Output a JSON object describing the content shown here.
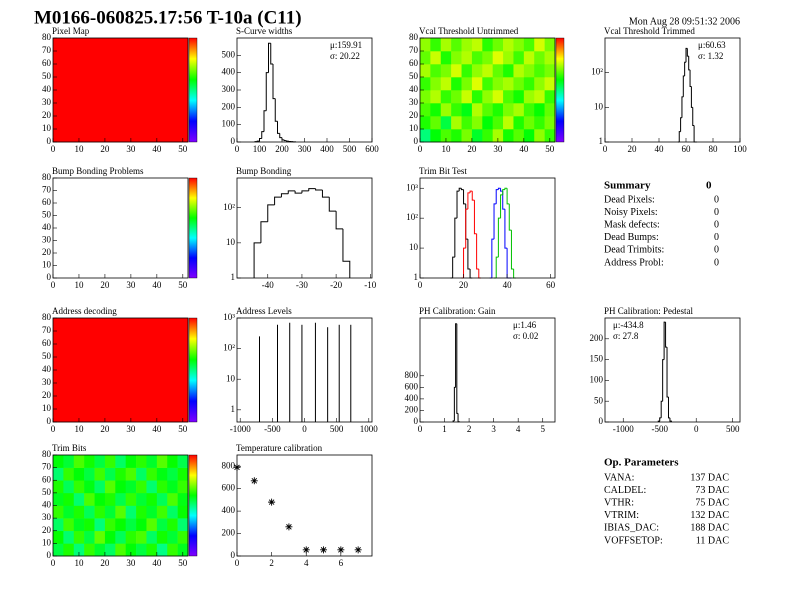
{
  "header": {
    "title": "M0166-060825.17:56 T-10a (C11)",
    "timestamp": "Mon Aug 28 09:51:32 2006"
  },
  "chart_data": [
    {
      "type": "heatmap",
      "title": "Pixel Map",
      "xlim": [
        0,
        52
      ],
      "ylim": [
        0,
        80
      ],
      "xticks": [
        0,
        10,
        20,
        30,
        40,
        50
      ],
      "yticks": [
        0,
        10,
        20,
        30,
        40,
        50,
        60,
        70,
        80
      ],
      "zlim": [
        0,
        1
      ],
      "z": [
        [
          1
        ]
      ]
    },
    {
      "type": "hist",
      "title": "S-Curve widths",
      "xlim": [
        0,
        600
      ],
      "ylim": [
        0,
        600
      ],
      "xticks": [
        0,
        100,
        200,
        300,
        400,
        500,
        600
      ],
      "yticks": [
        0,
        100,
        200,
        300,
        400,
        500
      ],
      "stats": [
        "μ:159.91",
        "σ: 20.22"
      ],
      "series": [
        {
          "color": "#000000",
          "bins": [
            80,
            90,
            100,
            110,
            120,
            130,
            140,
            150,
            160,
            170,
            180,
            190,
            200,
            210,
            220,
            230,
            240,
            250,
            260
          ],
          "values": [
            2,
            5,
            20,
            60,
            180,
            400,
            570,
            450,
            250,
            120,
            50,
            25,
            12,
            8,
            5,
            3,
            2,
            1
          ]
        }
      ]
    },
    {
      "type": "heatmap",
      "title": "Vcal Threshold Untrimmed",
      "xlim": [
        0,
        52
      ],
      "ylim": [
        0,
        80
      ],
      "xticks": [
        0,
        10,
        20,
        30,
        40,
        50
      ],
      "yticks": [
        0,
        10,
        20,
        30,
        40,
        50,
        60,
        70,
        80
      ],
      "zlim": [
        0,
        1
      ],
      "z": [
        [
          0.45,
          0.55,
          0.62,
          0.58,
          0.66,
          0.52,
          0.6,
          0.7,
          0.57,
          0.63,
          0.55,
          0.68,
          0.6
        ],
        [
          0.58,
          0.64,
          0.5,
          0.7,
          0.61,
          0.67,
          0.55,
          0.62,
          0.72,
          0.58,
          0.65,
          0.6,
          0.66
        ],
        [
          0.62,
          0.57,
          0.69,
          0.6,
          0.54,
          0.71,
          0.63,
          0.58,
          0.66,
          0.7,
          0.61,
          0.56,
          0.64
        ],
        [
          0.66,
          0.71,
          0.6,
          0.65,
          0.73,
          0.59,
          0.68,
          0.74,
          0.62,
          0.57,
          0.69,
          0.72,
          0.6
        ],
        [
          0.6,
          0.67,
          0.72,
          0.58,
          0.66,
          0.75,
          0.61,
          0.67,
          0.7,
          0.65,
          0.6,
          0.68,
          0.73
        ],
        [
          0.7,
          0.62,
          0.66,
          0.74,
          0.6,
          0.68,
          0.72,
          0.64,
          0.58,
          0.71,
          0.67,
          0.62,
          0.66
        ],
        [
          0.64,
          0.73,
          0.58,
          0.67,
          0.71,
          0.62,
          0.66,
          0.75,
          0.69,
          0.61,
          0.72,
          0.65,
          0.7
        ],
        [
          0.68,
          0.6,
          0.7,
          0.63,
          0.69,
          0.72,
          0.59,
          0.65,
          0.71,
          0.67,
          0.62,
          0.74,
          0.66
        ]
      ]
    },
    {
      "type": "hist",
      "title": "Vcal Threshold Trimmed",
      "log_y": true,
      "xlim": [
        0,
        100
      ],
      "ylim": [
        1,
        1000
      ],
      "xticks": [
        0,
        20,
        40,
        60,
        80,
        100
      ],
      "yticks": [
        1,
        10,
        {
          "value": 100,
          "label": "10²"
        }
      ],
      "stats": [
        "μ:60.63",
        "σ: 1.32"
      ],
      "series": [
        {
          "color": "#000000",
          "bins": [
            54,
            55,
            56,
            57,
            58,
            59,
            60,
            61,
            62,
            63,
            64,
            65,
            66,
            67,
            68
          ],
          "values": [
            1,
            2,
            5,
            20,
            80,
            200,
            500,
            300,
            120,
            40,
            10,
            3,
            1,
            1
          ]
        }
      ]
    },
    {
      "type": "heatmap",
      "title": "Bump Bonding Problems",
      "xlim": [
        0,
        52
      ],
      "ylim": [
        0,
        80
      ],
      "xticks": [
        0,
        10,
        20,
        30,
        40,
        50
      ],
      "yticks": [
        0,
        10,
        20,
        30,
        40,
        50,
        60,
        70,
        80
      ],
      "zlim": [
        0,
        1
      ]
    },
    {
      "type": "hist",
      "title": "Bump Bonding",
      "log_y": true,
      "xlim": [
        -49,
        -9.5
      ],
      "ylim": [
        1,
        700
      ],
      "xticks": [
        -40,
        -30,
        -20,
        -10
      ],
      "yticks": [
        1,
        10,
        {
          "value": 100,
          "label": "10²"
        }
      ],
      "series": [
        {
          "color": "#000000",
          "bins": [
            -44,
            -42,
            -40,
            -38,
            -36,
            -34,
            -32,
            -30,
            -28,
            -26,
            -24,
            -22,
            -20,
            -18,
            -16
          ],
          "values": [
            10,
            40,
            120,
            200,
            250,
            300,
            260,
            300,
            350,
            320,
            200,
            80,
            25,
            3
          ]
        }
      ]
    },
    {
      "type": "hist",
      "title": "Trim Bit Test",
      "log_y": true,
      "xlim": [
        0,
        62
      ],
      "ylim": [
        1,
        2200
      ],
      "xticks": [
        0,
        20,
        40,
        60
      ],
      "yticks": [
        1,
        10,
        {
          "value": 100,
          "label": "10²"
        },
        {
          "value": 1000,
          "label": "10³"
        }
      ],
      "series": [
        {
          "color": "#000000",
          "bins": [
            14,
            15,
            16,
            17,
            18,
            19,
            20,
            21,
            22,
            23,
            24
          ],
          "values": [
            1,
            5,
            100,
            800,
            1000,
            900,
            300,
            20,
            2,
            1
          ]
        },
        {
          "color": "#ff0000",
          "bins": [
            19,
            20,
            21,
            22,
            23,
            24,
            25,
            26,
            27,
            28
          ],
          "values": [
            1,
            10,
            200,
            700,
            800,
            400,
            30,
            2,
            1
          ]
        },
        {
          "color": "#0000ff",
          "bins": [
            32,
            33,
            34,
            35,
            36,
            37,
            38,
            39,
            40,
            41,
            42
          ],
          "values": [
            1,
            20,
            300,
            900,
            1000,
            800,
            200,
            10,
            1,
            1
          ]
        },
        {
          "color": "#00c000",
          "bins": [
            34,
            35,
            36,
            37,
            38,
            39,
            40,
            41,
            42,
            43,
            44
          ],
          "values": [
            1,
            5,
            100,
            600,
            900,
            1000,
            300,
            40,
            2,
            1
          ]
        }
      ]
    },
    {
      "type": "heatmap",
      "title": "Address decoding",
      "xlim": [
        0,
        52
      ],
      "ylim": [
        0,
        80
      ],
      "xticks": [
        0,
        10,
        20,
        30,
        40,
        50
      ],
      "yticks": [
        0,
        10,
        20,
        30,
        40,
        50,
        60,
        70,
        80
      ],
      "zlim": [
        0,
        1
      ],
      "z": [
        [
          1
        ]
      ]
    },
    {
      "type": "spikes",
      "title": "Address Levels",
      "log_y": true,
      "xlim": [
        -1050,
        1050
      ],
      "ylim": [
        0.4,
        1000
      ],
      "xticks": [
        -1000,
        -500,
        0,
        500,
        1000
      ],
      "yticks": [
        1,
        10,
        {
          "value": 100,
          "label": "10²"
        },
        {
          "value": 1000,
          "label": "10³"
        }
      ],
      "color": "#000000",
      "x": [
        -700,
        -420,
        -230,
        -40,
        170,
        360,
        540,
        720
      ],
      "values": [
        250,
        600,
        700,
        600,
        700,
        500,
        600,
        600
      ]
    },
    {
      "type": "hist",
      "title": "PH Calibration: Gain",
      "xlim": [
        0,
        5.5
      ],
      "ylim": [
        0,
        1800
      ],
      "xticks": [
        0,
        1,
        2,
        3,
        4,
        5
      ],
      "yticks": [
        0,
        200,
        400,
        600,
        800
      ],
      "stats": [
        "μ:1.46",
        "σ: 0.02"
      ],
      "series": [
        {
          "color": "#000000",
          "bins": [
            1.35,
            1.4,
            1.45,
            1.5,
            1.55,
            1.6
          ],
          "values": [
            20,
            600,
            1700,
            150,
            5
          ]
        }
      ]
    },
    {
      "type": "hist",
      "title": "PH Calibration: Pedestal",
      "xlim": [
        -1250,
        600
      ],
      "ylim": [
        0,
        250
      ],
      "xticks": [
        -1000,
        -500,
        0,
        500
      ],
      "yticks": [
        0,
        50,
        100,
        150,
        200
      ],
      "stats": [
        "μ:-434.8",
        "σ: 27.8"
      ],
      "series": [
        {
          "color": "#000000",
          "bins": [
            -520,
            -500,
            -480,
            -460,
            -440,
            -420,
            -400,
            -380,
            -360,
            -340
          ],
          "values": [
            2,
            10,
            50,
            150,
            240,
            180,
            60,
            10,
            2
          ]
        }
      ]
    },
    {
      "type": "heatmap",
      "title": "Trim Bits",
      "xlim": [
        0,
        52
      ],
      "ylim": [
        0,
        80
      ],
      "xticks": [
        0,
        10,
        20,
        30,
        40,
        50
      ],
      "yticks": [
        0,
        10,
        20,
        30,
        40,
        50,
        60,
        70,
        80
      ],
      "zlim": [
        0,
        1
      ],
      "z": [
        [
          0.5,
          0.58,
          0.45,
          0.6,
          0.52,
          0.47,
          0.62,
          0.55,
          0.5,
          0.58,
          0.44,
          0.6,
          0.53
        ],
        [
          0.56,
          0.46,
          0.6,
          0.5,
          0.64,
          0.55,
          0.48,
          0.59,
          0.62,
          0.47,
          0.57,
          0.51,
          0.6
        ],
        [
          0.47,
          0.61,
          0.53,
          0.57,
          0.45,
          0.6,
          0.56,
          0.5,
          0.55,
          0.63,
          0.5,
          0.58,
          0.46
        ],
        [
          0.6,
          0.52,
          0.58,
          0.48,
          0.59,
          0.51,
          0.63,
          0.46,
          0.58,
          0.52,
          0.61,
          0.47,
          0.56
        ],
        [
          0.53,
          0.57,
          0.46,
          0.62,
          0.55,
          0.58,
          0.49,
          0.6,
          0.51,
          0.57,
          0.48,
          0.62,
          0.54
        ],
        [
          0.58,
          0.48,
          0.6,
          0.54,
          0.47,
          0.63,
          0.55,
          0.52,
          0.6,
          0.46,
          0.59,
          0.53,
          0.6
        ],
        [
          0.46,
          0.6,
          0.55,
          0.5,
          0.61,
          0.49,
          0.58,
          0.62,
          0.47,
          0.6,
          0.54,
          0.5,
          0.57
        ],
        [
          0.55,
          0.51,
          0.62,
          0.57,
          0.5,
          0.6,
          0.47,
          0.55,
          0.59,
          0.52,
          0.63,
          0.56,
          0.49
        ]
      ]
    },
    {
      "type": "scatter",
      "title": "Temperature calibration",
      "xlim": [
        0,
        7.8
      ],
      "ylim": [
        0,
        900
      ],
      "xticks": [
        0,
        2,
        4,
        6
      ],
      "yticks": [
        0,
        200,
        400,
        600,
        800
      ],
      "color": "#000000",
      "x": [
        0,
        1,
        2,
        3,
        4,
        5,
        6,
        7
      ],
      "values": [
        790,
        670,
        480,
        260,
        55,
        55,
        55,
        55
      ]
    }
  ],
  "summary": {
    "title": "Summary",
    "total": 0,
    "rows": [
      {
        "label": "Dead Pixels:",
        "value": 0
      },
      {
        "label": "Noisy Pixels:",
        "value": 0
      },
      {
        "label": "Mask defects:",
        "value": 0
      },
      {
        "label": "Dead Bumps:",
        "value": 0
      },
      {
        "label": "Dead Trimbits:",
        "value": 0
      },
      {
        "label": "Address Probl:",
        "value": 0
      }
    ]
  },
  "op_parameters": {
    "title": "Op. Parameters",
    "rows": [
      {
        "label": "VANA:",
        "value": "137 DAC"
      },
      {
        "label": "CALDEL:",
        "value": "73 DAC"
      },
      {
        "label": "VTHR:",
        "value": "75 DAC"
      },
      {
        "label": "VTRIM:",
        "value": "132 DAC"
      },
      {
        "label": "IBIAS_DAC:",
        "value": "188 DAC"
      },
      {
        "label": "VOFFSETOP:",
        "value": "11 DAC"
      }
    ]
  }
}
